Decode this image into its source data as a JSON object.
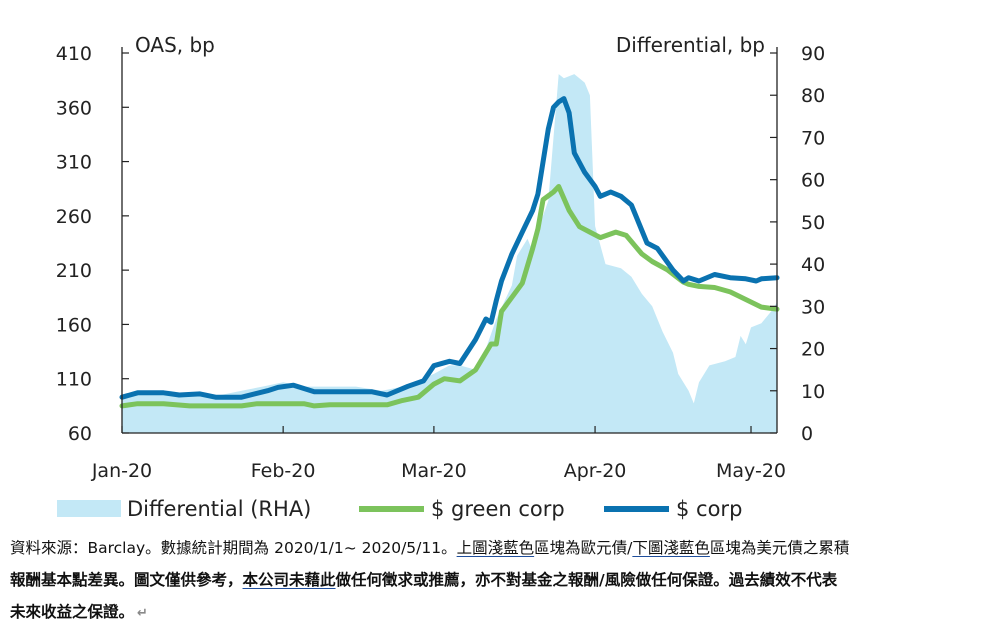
{
  "chart_data": {
    "type": "line",
    "left_axis_label": "OAS, bp",
    "right_axis_label": "Differential, bp",
    "left_ylim": [
      60,
      410
    ],
    "left_ticks": [
      60,
      110,
      160,
      210,
      260,
      310,
      360,
      410
    ],
    "right_ylim": [
      0,
      90
    ],
    "right_ticks": [
      0,
      10,
      20,
      30,
      40,
      50,
      60,
      70,
      80,
      90
    ],
    "x_ticks": [
      "Jan-20",
      "Feb-20",
      "Mar-20",
      "Apr-20",
      "May-20"
    ],
    "x_tick_dates": [
      "2020-01-01",
      "2020-02-01",
      "2020-03-01",
      "2020-04-01",
      "2020-05-01"
    ],
    "x_range": [
      "2020-01-01",
      "2020-05-06"
    ],
    "legend_position": "bottom",
    "colors": {
      "differential": "#c3e8f6",
      "green": "#7cc35c",
      "corp": "#0a72b0"
    },
    "series": [
      {
        "name": "Differential (RHA)",
        "kind": "area",
        "axis": "right",
        "points": [
          [
            "2020-01-01",
            9
          ],
          [
            "2020-01-05",
            10
          ],
          [
            "2020-01-10",
            10
          ],
          [
            "2020-01-15",
            9
          ],
          [
            "2020-01-20",
            9
          ],
          [
            "2020-01-24",
            10
          ],
          [
            "2020-01-28",
            11
          ],
          [
            "2020-02-01",
            12
          ],
          [
            "2020-02-05",
            11
          ],
          [
            "2020-02-10",
            11
          ],
          [
            "2020-02-15",
            11
          ],
          [
            "2020-02-20",
            10
          ],
          [
            "2020-02-24",
            11
          ],
          [
            "2020-02-26",
            12
          ],
          [
            "2020-03-01",
            14
          ],
          [
            "2020-03-04",
            16
          ],
          [
            "2020-03-06",
            16
          ],
          [
            "2020-03-09",
            15
          ],
          [
            "2020-03-11",
            20
          ],
          [
            "2020-03-13",
            27
          ],
          [
            "2020-03-16",
            35
          ],
          [
            "2020-03-17",
            42
          ],
          [
            "2020-03-19",
            46
          ],
          [
            "2020-03-20",
            43
          ],
          [
            "2020-03-21",
            48
          ],
          [
            "2020-03-23",
            55
          ],
          [
            "2020-03-24",
            70
          ],
          [
            "2020-03-25",
            85
          ],
          [
            "2020-03-26",
            84
          ],
          [
            "2020-03-28",
            85
          ],
          [
            "2020-03-30",
            83
          ],
          [
            "2020-03-31",
            80
          ],
          [
            "2020-04-01",
            49
          ],
          [
            "2020-04-03",
            40
          ],
          [
            "2020-04-06",
            39
          ],
          [
            "2020-04-08",
            37
          ],
          [
            "2020-04-10",
            33
          ],
          [
            "2020-04-12",
            30
          ],
          [
            "2020-04-14",
            24
          ],
          [
            "2020-04-16",
            19
          ],
          [
            "2020-04-17",
            14
          ],
          [
            "2020-04-19",
            10
          ],
          [
            "2020-04-20",
            7
          ],
          [
            "2020-04-21",
            12
          ],
          [
            "2020-04-23",
            16
          ],
          [
            "2020-04-26",
            17
          ],
          [
            "2020-04-28",
            18
          ],
          [
            "2020-04-29",
            23
          ],
          [
            "2020-04-30",
            21
          ],
          [
            "2020-05-01",
            25
          ],
          [
            "2020-05-03",
            26
          ],
          [
            "2020-05-05",
            29
          ],
          [
            "2020-05-06",
            31
          ]
        ]
      },
      {
        "name": "$ green corp",
        "kind": "line",
        "axis": "left",
        "points": [
          [
            "2020-01-01",
            85
          ],
          [
            "2020-01-04",
            87
          ],
          [
            "2020-01-09",
            87
          ],
          [
            "2020-01-14",
            85
          ],
          [
            "2020-01-19",
            85
          ],
          [
            "2020-01-24",
            85
          ],
          [
            "2020-01-27",
            87
          ],
          [
            "2020-01-31",
            87
          ],
          [
            "2020-02-05",
            87
          ],
          [
            "2020-02-07",
            85
          ],
          [
            "2020-02-10",
            86
          ],
          [
            "2020-02-14",
            86
          ],
          [
            "2020-02-18",
            86
          ],
          [
            "2020-02-21",
            86
          ],
          [
            "2020-02-24",
            90
          ],
          [
            "2020-02-27",
            93
          ],
          [
            "2020-03-01",
            105
          ],
          [
            "2020-03-03",
            110
          ],
          [
            "2020-03-06",
            108
          ],
          [
            "2020-03-09",
            118
          ],
          [
            "2020-03-12",
            142
          ],
          [
            "2020-03-13",
            142
          ],
          [
            "2020-03-14",
            172
          ],
          [
            "2020-03-16",
            185
          ],
          [
            "2020-03-18",
            198
          ],
          [
            "2020-03-20",
            230
          ],
          [
            "2020-03-21",
            248
          ],
          [
            "2020-03-22",
            275
          ],
          [
            "2020-03-24",
            282
          ],
          [
            "2020-03-25",
            287
          ],
          [
            "2020-03-27",
            265
          ],
          [
            "2020-03-29",
            250
          ],
          [
            "2020-03-31",
            245
          ],
          [
            "2020-04-02",
            240
          ],
          [
            "2020-04-05",
            245
          ],
          [
            "2020-04-07",
            242
          ],
          [
            "2020-04-10",
            225
          ],
          [
            "2020-04-12",
            218
          ],
          [
            "2020-04-15",
            210
          ],
          [
            "2020-04-18",
            199
          ],
          [
            "2020-04-19",
            197
          ],
          [
            "2020-04-21",
            195
          ],
          [
            "2020-04-24",
            194
          ],
          [
            "2020-04-27",
            190
          ],
          [
            "2020-04-30",
            183
          ],
          [
            "2020-05-03",
            176
          ],
          [
            "2020-05-06",
            174
          ]
        ]
      },
      {
        "name": "$ corp",
        "kind": "line",
        "axis": "left",
        "points": [
          [
            "2020-01-01",
            93
          ],
          [
            "2020-01-04",
            97
          ],
          [
            "2020-01-09",
            97
          ],
          [
            "2020-01-12",
            95
          ],
          [
            "2020-01-16",
            96
          ],
          [
            "2020-01-19",
            93
          ],
          [
            "2020-01-24",
            93
          ],
          [
            "2020-01-29",
            99
          ],
          [
            "2020-01-31",
            102
          ],
          [
            "2020-02-03",
            104
          ],
          [
            "2020-02-07",
            98
          ],
          [
            "2020-02-10",
            98
          ],
          [
            "2020-02-14",
            98
          ],
          [
            "2020-02-18",
            98
          ],
          [
            "2020-02-21",
            95
          ],
          [
            "2020-02-25",
            103
          ],
          [
            "2020-02-28",
            108
          ],
          [
            "2020-03-01",
            122
          ],
          [
            "2020-03-04",
            126
          ],
          [
            "2020-03-06",
            124
          ],
          [
            "2020-03-09",
            146
          ],
          [
            "2020-03-11",
            165
          ],
          [
            "2020-03-12",
            162
          ],
          [
            "2020-03-13",
            182
          ],
          [
            "2020-03-14",
            200
          ],
          [
            "2020-03-16",
            225
          ],
          [
            "2020-03-18",
            245
          ],
          [
            "2020-03-20",
            265
          ],
          [
            "2020-03-21",
            280
          ],
          [
            "2020-03-23",
            340
          ],
          [
            "2020-03-24",
            360
          ],
          [
            "2020-03-25",
            365
          ],
          [
            "2020-03-26",
            368
          ],
          [
            "2020-03-27",
            355
          ],
          [
            "2020-03-28",
            318
          ],
          [
            "2020-03-30",
            300
          ],
          [
            "2020-04-01",
            287
          ],
          [
            "2020-04-02",
            278
          ],
          [
            "2020-04-04",
            282
          ],
          [
            "2020-04-06",
            278
          ],
          [
            "2020-04-08",
            270
          ],
          [
            "2020-04-11",
            235
          ],
          [
            "2020-04-13",
            230
          ],
          [
            "2020-04-16",
            210
          ],
          [
            "2020-04-18",
            200
          ],
          [
            "2020-04-19",
            203
          ],
          [
            "2020-04-21",
            200
          ],
          [
            "2020-04-24",
            206
          ],
          [
            "2020-04-27",
            203
          ],
          [
            "2020-04-30",
            202
          ],
          [
            "2020-05-02",
            200
          ],
          [
            "2020-05-03",
            202
          ],
          [
            "2020-05-06",
            203
          ]
        ]
      }
    ]
  },
  "caption": {
    "line1_a": "資料來源：Barclay。數據統計期間為 2020/1/1~ 2020/5/11。",
    "line1_u1": "上圖淺藍色",
    "line1_b": "區塊為歐元債/",
    "line1_u2": "下圖淺藍色",
    "line1_c": "區塊為美元債之累積",
    "line2_a": "報酬基本點差異。",
    "line2_b": "圖文僅供參考，",
    "line2_u": "本公司未藉此",
    "line2_c": "做任何徵求或推薦，亦不對基金之報酬/風險做任何保證。過去績效不代表",
    "line3_a": "未來收益之保證。",
    "return_mark": "↵"
  }
}
